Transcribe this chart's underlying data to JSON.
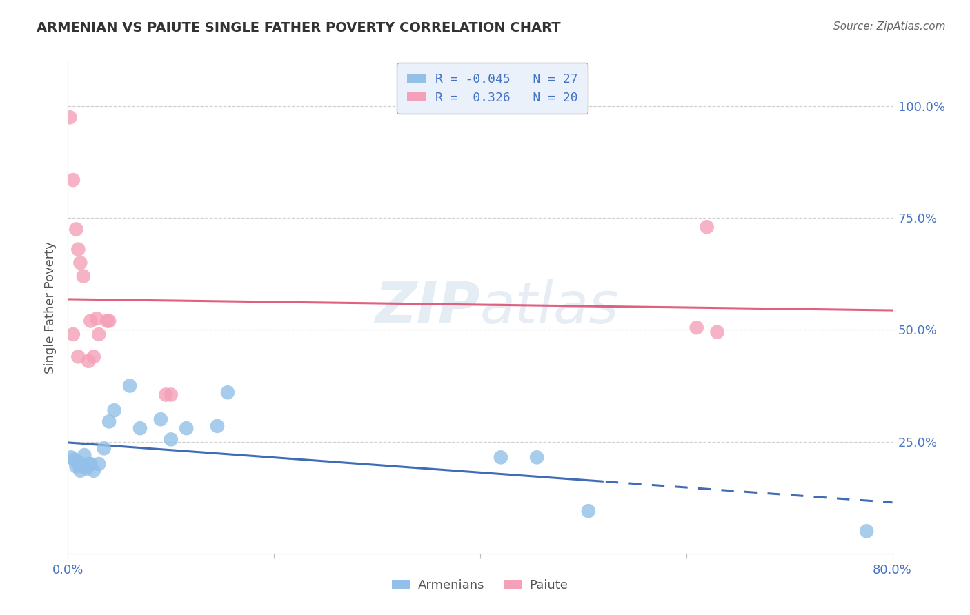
{
  "title": "ARMENIAN VS PAIUTE SINGLE FATHER POVERTY CORRELATION CHART",
  "source": "Source: ZipAtlas.com",
  "ylabel": "Single Father Poverty",
  "ytick_labels": [
    "100.0%",
    "75.0%",
    "50.0%",
    "25.0%"
  ],
  "ytick_values": [
    1.0,
    0.75,
    0.5,
    0.25
  ],
  "xlim": [
    0.0,
    0.8
  ],
  "ylim": [
    0.0,
    1.1
  ],
  "armenian_R": -0.045,
  "armenian_N": 27,
  "paiute_R": 0.326,
  "paiute_N": 20,
  "armenian_color": "#92C0E8",
  "paiute_color": "#F4A0B8",
  "armenian_line_color": "#3E6DB5",
  "paiute_line_color": "#E06080",
  "legend_box_color": "#EAF1FA",
  "background_color": "#FFFFFF",
  "watermark_text": "ZIPatlas",
  "grid_color": "#CCCCCC",
  "armenian_x": [
    0.003,
    0.006,
    0.008,
    0.01,
    0.01,
    0.012,
    0.014,
    0.016,
    0.018,
    0.02,
    0.022,
    0.025,
    0.03,
    0.035,
    0.04,
    0.045,
    0.06,
    0.07,
    0.09,
    0.1,
    0.115,
    0.145,
    0.155,
    0.42,
    0.455,
    0.505,
    0.775
  ],
  "armenian_y": [
    0.215,
    0.21,
    0.195,
    0.205,
    0.2,
    0.185,
    0.195,
    0.22,
    0.19,
    0.2,
    0.2,
    0.185,
    0.2,
    0.235,
    0.295,
    0.32,
    0.375,
    0.28,
    0.3,
    0.255,
    0.28,
    0.285,
    0.36,
    0.215,
    0.215,
    0.095,
    0.05
  ],
  "paiute_x": [
    0.002,
    0.005,
    0.008,
    0.01,
    0.012,
    0.015,
    0.022,
    0.028,
    0.03,
    0.038,
    0.04,
    0.095,
    0.1,
    0.61
  ],
  "paiute_y": [
    0.975,
    0.835,
    0.725,
    0.68,
    0.65,
    0.62,
    0.52,
    0.525,
    0.49,
    0.52,
    0.52,
    0.355,
    0.355,
    0.505
  ],
  "paiute_x2": [
    0.005,
    0.01,
    0.02,
    0.025,
    0.62,
    0.63
  ],
  "paiute_y2": [
    0.49,
    0.44,
    0.43,
    0.44,
    0.73,
    0.495
  ],
  "arm_line_solid_end": 0.52,
  "arm_line_dash_start": 0.52
}
